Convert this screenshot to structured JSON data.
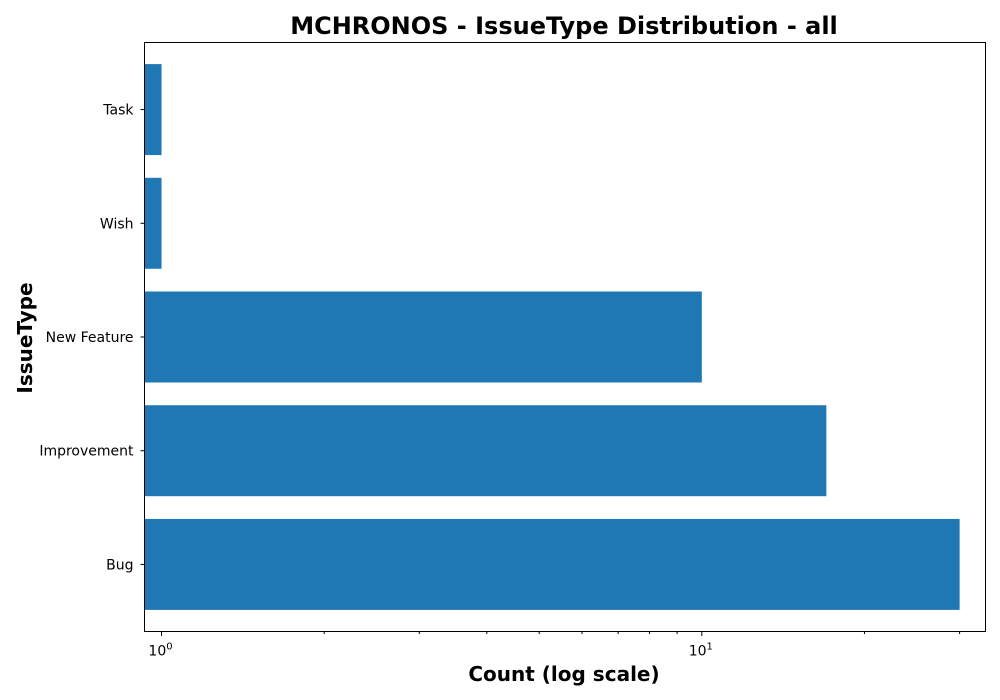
{
  "chart_data": {
    "type": "bar",
    "orientation": "horizontal",
    "title": "MCHRONOS - IssueType Distribution - all",
    "xlabel": "Count (log scale)",
    "ylabel": "IssueType",
    "x_scale": "log",
    "xlim": [
      0.93,
      33.5
    ],
    "categories": [
      "Bug",
      "Improvement",
      "New Feature",
      "Wish",
      "Task"
    ],
    "values": [
      30,
      17,
      10,
      1,
      1
    ],
    "bar_color": "#1f77b4",
    "major_ticks": [
      {
        "value": 1,
        "base": "10",
        "exp": "0"
      },
      {
        "value": 10,
        "base": "10",
        "exp": "1"
      }
    ],
    "grid": false,
    "legend": "none"
  }
}
